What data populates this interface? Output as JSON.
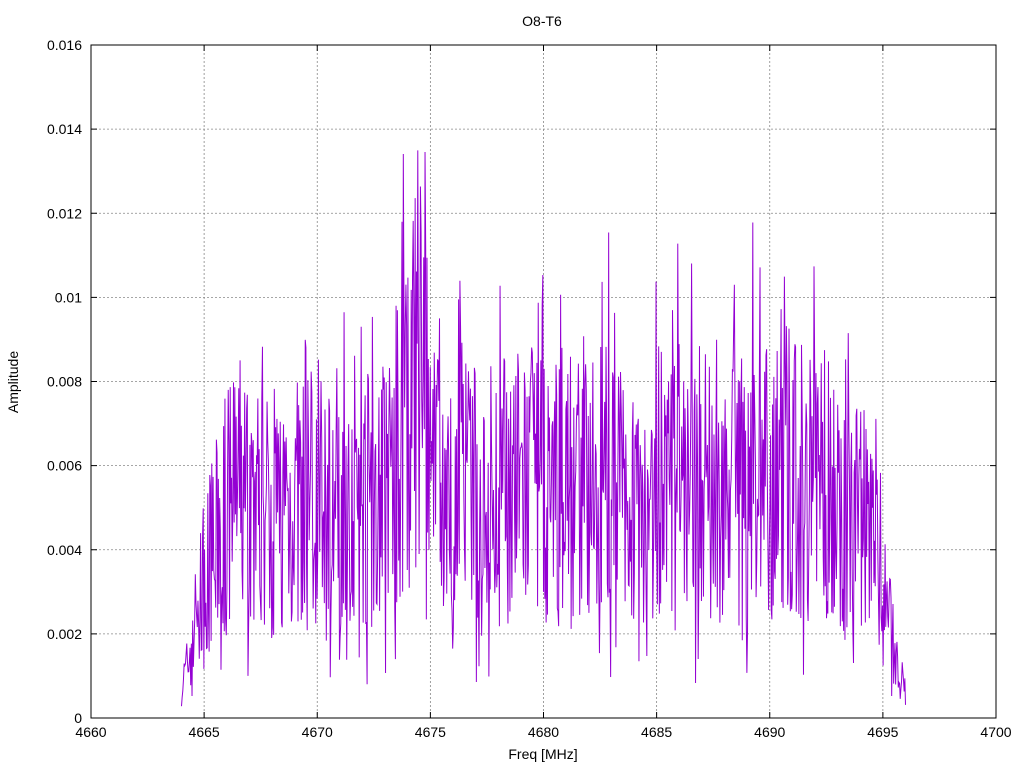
{
  "chart_data": {
    "type": "line",
    "title": "O8-T6",
    "xlabel": "Freq [MHz]",
    "ylabel": "Amplitude",
    "xlim": [
      4660,
      4700
    ],
    "ylim": [
      0,
      0.016
    ],
    "x_ticks": [
      4660,
      4665,
      4670,
      4675,
      4680,
      4685,
      4690,
      4695,
      4700
    ],
    "x_tick_labels": [
      "4660",
      "4665",
      "4670",
      "4675",
      "4680",
      "4685",
      "4690",
      "4695",
      "4700"
    ],
    "y_ticks": [
      0,
      0.002,
      0.004,
      0.006,
      0.008,
      0.01,
      0.012,
      0.014,
      0.016
    ],
    "y_tick_labels": [
      "0",
      "0.002",
      "0.004",
      "0.006",
      "0.008",
      "0.01",
      "0.012",
      "0.014",
      "0.016"
    ],
    "grid": true,
    "legend": "none",
    "series": [
      {
        "color": "#9400d3",
        "x": [
          4664.0,
          4664.3,
          4664.6,
          4665.0,
          4665.4,
          4665.8,
          4666.2,
          4666.6,
          4667.0,
          4667.5,
          4668.0,
          4668.5,
          4669.0,
          4669.5,
          4670.0,
          4670.5,
          4671.0,
          4671.5,
          4672.0,
          4672.5,
          4673.0,
          4673.5,
          4674.0,
          4674.3,
          4674.5,
          4674.8,
          4675.0,
          4675.5,
          4676.0,
          4676.5,
          4677.0,
          4677.5,
          4678.0,
          4678.5,
          4679.0,
          4679.5,
          4680.0,
          4680.5,
          4681.0,
          4681.5,
          4682.0,
          4682.5,
          4683.0,
          4683.5,
          4684.0,
          4684.5,
          4685.0,
          4685.5,
          4686.0,
          4686.5,
          4687.0,
          4687.5,
          4688.0,
          4688.5,
          4689.0,
          4689.5,
          4690.0,
          4690.5,
          4691.0,
          4691.5,
          4692.0,
          4692.5,
          4693.0,
          4693.5,
          4694.0,
          4694.5,
          4695.0,
          4695.3,
          4695.6,
          4696.0
        ],
        "y": [
          0.0008,
          0.0015,
          0.0026,
          0.0035,
          0.0045,
          0.0052,
          0.0058,
          0.0062,
          0.006,
          0.0057,
          0.0054,
          0.0058,
          0.0056,
          0.0066,
          0.0061,
          0.0059,
          0.0062,
          0.0065,
          0.0058,
          0.0062,
          0.0064,
          0.0071,
          0.0078,
          0.0088,
          0.0102,
          0.0085,
          0.0065,
          0.0058,
          0.0061,
          0.0062,
          0.006,
          0.0063,
          0.0059,
          0.0065,
          0.0062,
          0.0064,
          0.006,
          0.0063,
          0.0061,
          0.0065,
          0.0062,
          0.0064,
          0.0066,
          0.006,
          0.0063,
          0.0061,
          0.0064,
          0.006,
          0.0066,
          0.0062,
          0.0064,
          0.006,
          0.0063,
          0.0061,
          0.0065,
          0.0068,
          0.0063,
          0.007,
          0.0066,
          0.0064,
          0.0067,
          0.0062,
          0.0058,
          0.0057,
          0.0052,
          0.0045,
          0.0036,
          0.0025,
          0.0015,
          0.0007
        ]
      }
    ]
  }
}
